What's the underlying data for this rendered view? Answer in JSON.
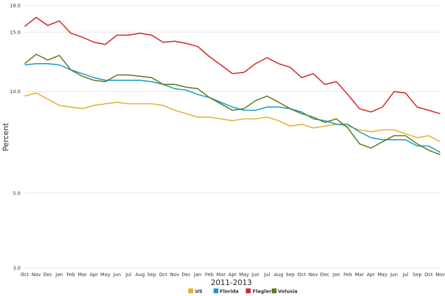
{
  "chart_data": {
    "type": "line",
    "xlabel": "2011-2013",
    "ylabel": "Percent",
    "ylim": [
      3.0,
      18.0
    ],
    "yticks": [
      "3.0",
      "5.0",
      "10.0",
      "15.0",
      "18.0"
    ],
    "ytick_values": [
      3,
      5,
      10,
      15,
      18
    ],
    "grid": "horizontal",
    "legend_position": "bottom-center",
    "categories": [
      "Oct",
      "Nov",
      "Dec",
      "Jan",
      "Feb",
      "Mar",
      "Apr",
      "May",
      "Jun",
      "Jul",
      "Aug",
      "Sep",
      "Oct",
      "Nov",
      "Dec",
      "Jan",
      "Feb",
      "Mar",
      "Apr",
      "May",
      "Jun",
      "Jul",
      "Aug",
      "Sep",
      "Oct",
      "Nov",
      "Dec",
      "Jan",
      "Feb",
      "Mar",
      "Apr",
      "May",
      "Jun",
      "Jul",
      "Sep",
      "Oct",
      "Nov"
    ],
    "series": [
      {
        "name": "US",
        "color": "#e3b12b",
        "values": [
          9.7,
          9.9,
          9.5,
          9.1,
          9.0,
          8.9,
          9.1,
          9.2,
          9.3,
          9.2,
          9.2,
          9.2,
          9.1,
          8.8,
          8.6,
          8.4,
          8.4,
          8.3,
          8.2,
          8.3,
          8.3,
          8.4,
          8.2,
          7.9,
          8.0,
          7.8,
          7.9,
          8.0,
          7.9,
          7.7,
          7.6,
          7.7,
          7.7,
          7.5,
          7.3,
          7.4,
          7.1
        ]
      },
      {
        "name": "Florida",
        "color": "#1b9ccc",
        "values": [
          12.0,
          12.1,
          12.1,
          12.0,
          11.6,
          11.3,
          11.0,
          10.8,
          10.8,
          10.8,
          10.8,
          10.7,
          10.5,
          10.2,
          10.1,
          9.8,
          9.6,
          9.3,
          9.0,
          8.8,
          8.8,
          9.0,
          9.0,
          8.9,
          8.7,
          8.3,
          8.2,
          8.0,
          8.0,
          7.6,
          7.3,
          7.2,
          7.2,
          7.2,
          6.9,
          6.9,
          6.6
        ]
      },
      {
        "name": "Flagler",
        "color": "#d62728",
        "values": [
          15.6,
          16.6,
          15.7,
          16.2,
          14.9,
          14.5,
          14.0,
          13.8,
          14.7,
          14.7,
          14.9,
          14.7,
          14.0,
          14.1,
          13.9,
          13.6,
          12.7,
          12.0,
          11.3,
          11.4,
          12.1,
          12.6,
          12.1,
          11.8,
          11.0,
          11.3,
          10.5,
          10.7,
          9.8,
          8.9,
          8.7,
          9.0,
          10.0,
          9.9,
          9.0,
          8.8,
          8.6
        ]
      },
      {
        "name": "Volusia",
        "color": "#5a7d1e",
        "values": [
          12.1,
          12.9,
          12.4,
          12.8,
          11.6,
          11.1,
          10.8,
          10.7,
          11.2,
          11.2,
          11.1,
          11.0,
          10.5,
          10.5,
          10.3,
          10.2,
          9.6,
          9.2,
          8.8,
          8.9,
          9.4,
          9.7,
          9.3,
          8.9,
          8.6,
          8.4,
          8.1,
          8.3,
          7.8,
          7.0,
          6.8,
          7.1,
          7.4,
          7.4,
          7.0,
          6.7,
          6.5
        ]
      }
    ]
  }
}
